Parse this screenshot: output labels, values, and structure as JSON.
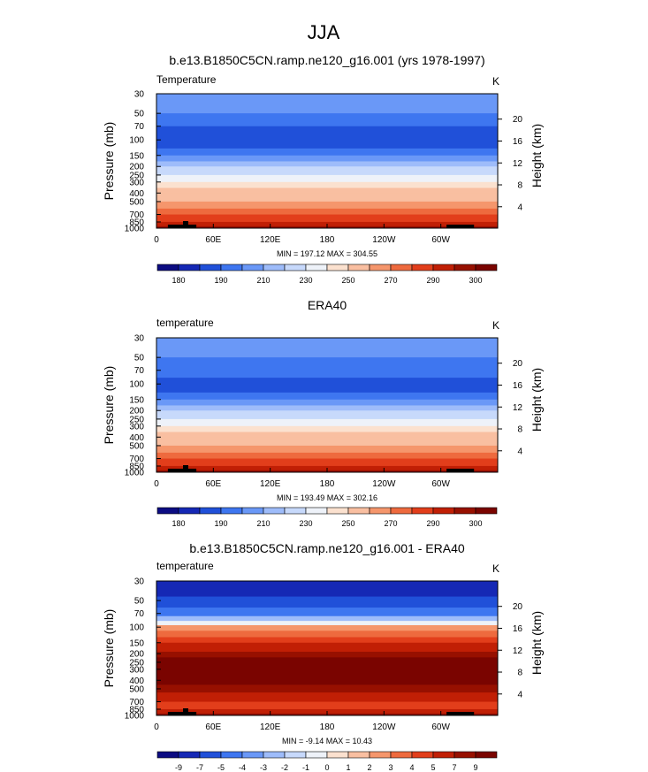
{
  "figure": {
    "title": "JJA"
  },
  "chart_data": [
    {
      "type": "heatmap",
      "title": "b.e13.B1850C5CN.ramp.ne120_g16.001 (yrs 1978-1997)",
      "left_string": "Temperature",
      "right_string": "K",
      "ylabel": "Pressure (mb)",
      "ylabel_right": "Height (km)",
      "x_tick_labels": [
        "0",
        "60E",
        "120E",
        "180",
        "120W",
        "60W"
      ],
      "y_tick_labels": [
        "30",
        "50",
        "70",
        "100",
        "150",
        "200",
        "250",
        "300",
        "400",
        "500",
        "700",
        "850",
        "1000"
      ],
      "y_right_tick_labels": [
        "20",
        "16",
        "12",
        "8",
        "4"
      ],
      "min_max_text": "MIN = 197.12  MAX = 304.55",
      "min": 197.12,
      "max": 304.55,
      "colorbar_labels": [
        "180",
        "190",
        "210",
        "230",
        "250",
        "270",
        "290",
        "300"
      ],
      "colorbar_colors": [
        "#0c0c82",
        "#1528b5",
        "#2050d9",
        "#3e76f0",
        "#6a98f7",
        "#9ebcfa",
        "#c7d9fb",
        "#eef2f9",
        "#fbe1cf",
        "#f9bfa1",
        "#f5966c",
        "#ee6a3e",
        "#e23e1b",
        "#c11f05",
        "#971000",
        "#7a0400"
      ],
      "bands": [
        {
          "pressure": 30,
          "level": 4
        },
        {
          "pressure": 50,
          "level": 3
        },
        {
          "pressure": 70,
          "level": 2
        },
        {
          "pressure": 100,
          "level": 2
        },
        {
          "pressure": 125,
          "level": 3
        },
        {
          "pressure": 150,
          "level": 4
        },
        {
          "pressure": 175,
          "level": 5
        },
        {
          "pressure": 200,
          "level": 6
        },
        {
          "pressure": 250,
          "level": 7
        },
        {
          "pressure": 300,
          "level": 8
        },
        {
          "pressure": 350,
          "level": 9
        },
        {
          "pressure": 400,
          "level": 9
        },
        {
          "pressure": 500,
          "level": 10
        },
        {
          "pressure": 600,
          "level": 11
        },
        {
          "pressure": 700,
          "level": 12
        },
        {
          "pressure": 850,
          "level": 13
        }
      ]
    },
    {
      "type": "heatmap",
      "title": "ERA40",
      "left_string": "temperature",
      "right_string": "K",
      "ylabel": "Pressure (mb)",
      "ylabel_right": "Height (km)",
      "x_tick_labels": [
        "0",
        "60E",
        "120E",
        "180",
        "120W",
        "60W"
      ],
      "y_tick_labels": [
        "30",
        "50",
        "70",
        "100",
        "150",
        "200",
        "250",
        "300",
        "400",
        "500",
        "700",
        "850",
        "1000"
      ],
      "y_right_tick_labels": [
        "20",
        "16",
        "12",
        "8",
        "4"
      ],
      "min_max_text": "MIN = 193.49  MAX = 302.16",
      "min": 193.49,
      "max": 302.16,
      "colorbar_labels": [
        "180",
        "190",
        "210",
        "230",
        "250",
        "270",
        "290",
        "300"
      ],
      "colorbar_colors": [
        "#0c0c82",
        "#1528b5",
        "#2050d9",
        "#3e76f0",
        "#6a98f7",
        "#9ebcfa",
        "#c7d9fb",
        "#eef2f9",
        "#fbe1cf",
        "#f9bfa1",
        "#f5966c",
        "#ee6a3e",
        "#e23e1b",
        "#c11f05",
        "#971000",
        "#7a0400"
      ],
      "bands": [
        {
          "pressure": 30,
          "level": 4
        },
        {
          "pressure": 50,
          "level": 3
        },
        {
          "pressure": 70,
          "level": 3
        },
        {
          "pressure": 85,
          "level": 2
        },
        {
          "pressure": 125,
          "level": 3
        },
        {
          "pressure": 150,
          "level": 4
        },
        {
          "pressure": 175,
          "level": 5
        },
        {
          "pressure": 200,
          "level": 6
        },
        {
          "pressure": 250,
          "level": 7
        },
        {
          "pressure": 300,
          "level": 8
        },
        {
          "pressure": 350,
          "level": 9
        },
        {
          "pressure": 400,
          "level": 9
        },
        {
          "pressure": 500,
          "level": 10
        },
        {
          "pressure": 600,
          "level": 11
        },
        {
          "pressure": 700,
          "level": 12
        },
        {
          "pressure": 850,
          "level": 13
        }
      ]
    },
    {
      "type": "heatmap",
      "title": "b.e13.B1850C5CN.ramp.ne120_g16.001 - ERA40",
      "left_string": "temperature",
      "right_string": "K",
      "ylabel": "Pressure (mb)",
      "ylabel_right": "Height (km)",
      "x_tick_labels": [
        "0",
        "60E",
        "120E",
        "180",
        "120W",
        "60W"
      ],
      "y_tick_labels": [
        "30",
        "50",
        "70",
        "100",
        "150",
        "200",
        "250",
        "300",
        "400",
        "500",
        "700",
        "850",
        "1000"
      ],
      "y_right_tick_labels": [
        "20",
        "16",
        "12",
        "8",
        "4"
      ],
      "min_max_text": "MIN = -9.14  MAX = 10.43",
      "min": -9.14,
      "max": 10.43,
      "colorbar_labels": [
        "-9",
        "-7",
        "-5",
        "-4",
        "-3",
        "-2",
        "-1",
        "0",
        "1",
        "2",
        "3",
        "4",
        "5",
        "7",
        "9"
      ],
      "colorbar_colors": [
        "#0c0c82",
        "#1528b5",
        "#2050d9",
        "#3e76f0",
        "#6a98f7",
        "#9ebcfa",
        "#c7d9fb",
        "#eef2f9",
        "#fbe1cf",
        "#f9bfa1",
        "#f5966c",
        "#ee6a3e",
        "#e23e1b",
        "#c11f05",
        "#971000",
        "#7a0400"
      ],
      "bands": [
        {
          "pressure": 30,
          "level": 1
        },
        {
          "pressure": 45,
          "level": 2
        },
        {
          "pressure": 60,
          "level": 3
        },
        {
          "pressure": 75,
          "level": 5
        },
        {
          "pressure": 85,
          "level": 7
        },
        {
          "pressure": 95,
          "level": 10
        },
        {
          "pressure": 110,
          "level": 11
        },
        {
          "pressure": 130,
          "level": 12
        },
        {
          "pressure": 150,
          "level": 13
        },
        {
          "pressure": 190,
          "level": 14
        },
        {
          "pressure": 220,
          "level": 15
        },
        {
          "pressure": 450,
          "level": 14
        },
        {
          "pressure": 550,
          "level": 13
        },
        {
          "pressure": 700,
          "level": 12
        },
        {
          "pressure": 850,
          "level": 13
        }
      ]
    }
  ]
}
